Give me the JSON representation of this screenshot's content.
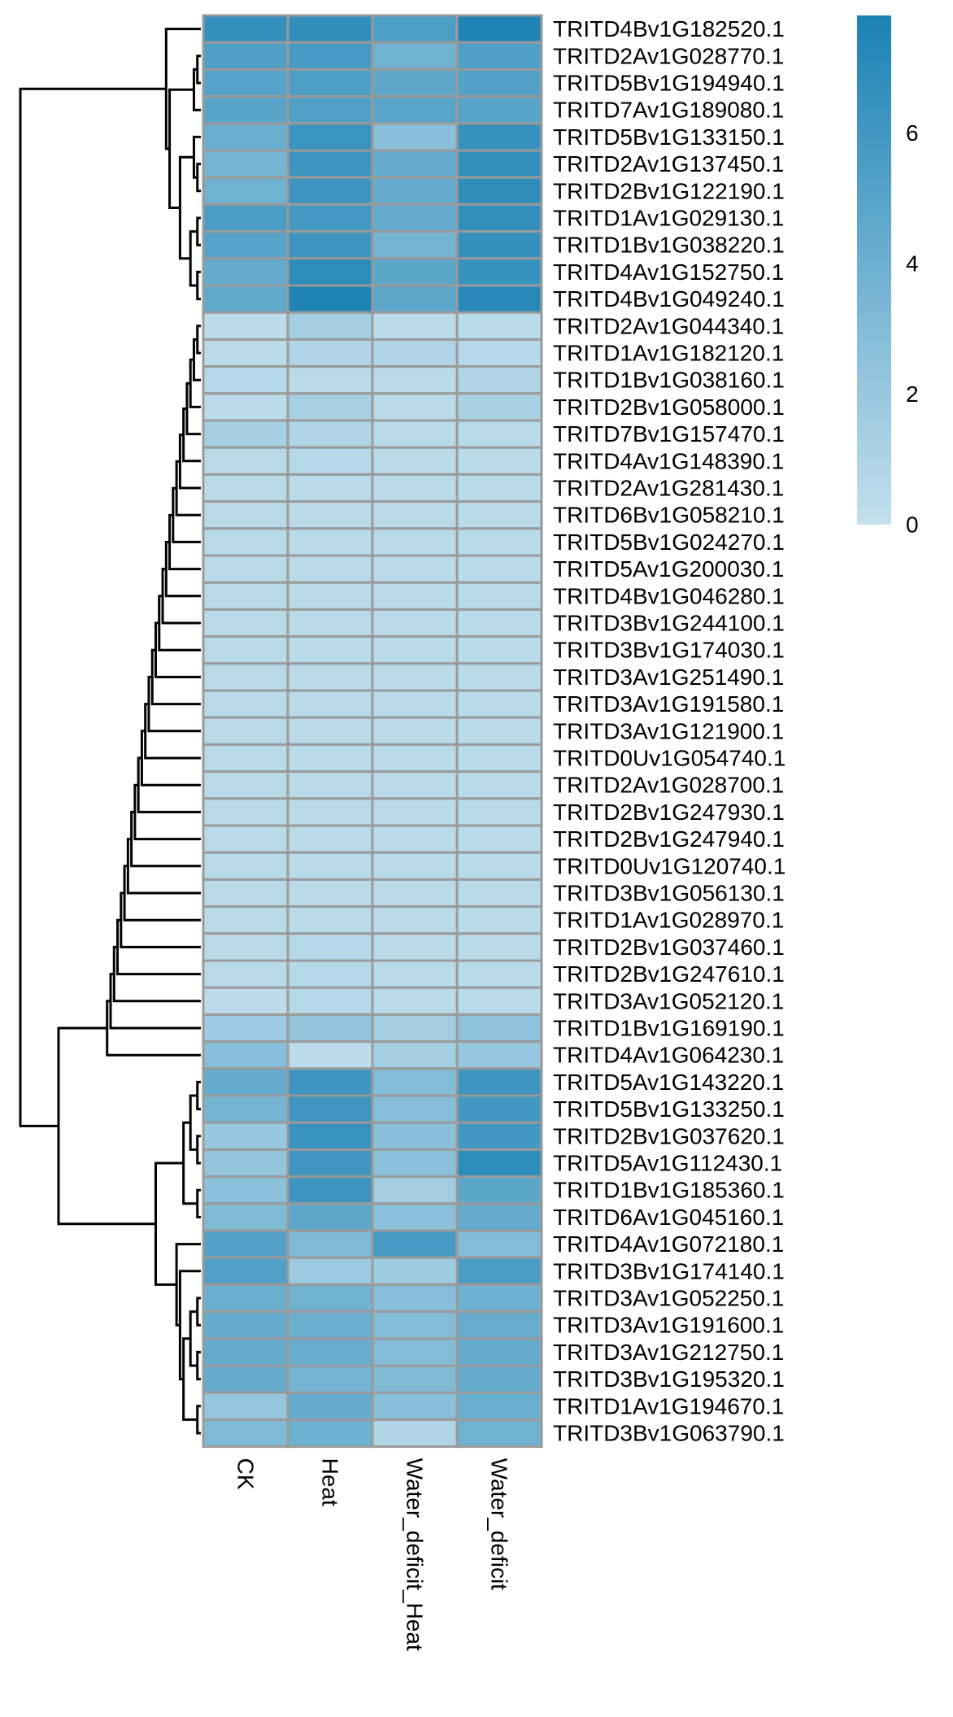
{
  "chart_data": {
    "type": "heatmap",
    "columns": [
      "CK",
      "Heat",
      "Water_deficit_Heat",
      "Water_deficit"
    ],
    "rows": [
      {
        "gene": "TRITD4Bv1G182520.1",
        "values": [
          6.7,
          6.8,
          5.5,
          7.6
        ]
      },
      {
        "gene": "TRITD2Av1G028770.1",
        "values": [
          5.4,
          5.8,
          3.8,
          5.4
        ]
      },
      {
        "gene": "TRITD5Bv1G194940.1",
        "values": [
          5.1,
          5.5,
          4.7,
          5.2
        ]
      },
      {
        "gene": "TRITD7Av1G189080.1",
        "values": [
          5.0,
          5.3,
          4.9,
          5.0
        ]
      },
      {
        "gene": "TRITD5Bv1G133150.1",
        "values": [
          4.1,
          6.3,
          2.7,
          6.5
        ]
      },
      {
        "gene": "TRITD2Av1G137450.1",
        "values": [
          3.6,
          6.2,
          4.3,
          6.7
        ]
      },
      {
        "gene": "TRITD2Bv1G122190.1",
        "values": [
          3.8,
          6.2,
          4.4,
          6.8
        ]
      },
      {
        "gene": "TRITD1Av1G029130.1",
        "values": [
          5.6,
          5.9,
          4.4,
          6.7
        ]
      },
      {
        "gene": "TRITD1Bv1G038220.1",
        "values": [
          5.1,
          6.2,
          3.6,
          6.6
        ]
      },
      {
        "gene": "TRITD4Av1G152750.1",
        "values": [
          4.4,
          7.0,
          4.8,
          6.5
        ]
      },
      {
        "gene": "TRITD4Bv1G049240.1",
        "values": [
          4.6,
          7.6,
          4.7,
          7.2
        ]
      },
      {
        "gene": "TRITD2Av1G044340.1",
        "values": [
          0.3,
          1.5,
          0.3,
          0.5
        ]
      },
      {
        "gene": "TRITD1Av1G182120.1",
        "values": [
          0.4,
          0.8,
          0.9,
          0.6
        ]
      },
      {
        "gene": "TRITD1Bv1G038160.1",
        "values": [
          0.6,
          0.5,
          0.5,
          0.9
        ]
      },
      {
        "gene": "TRITD2Bv1G058000.1",
        "values": [
          0.4,
          1.3,
          0.5,
          1.2
        ]
      },
      {
        "gene": "TRITD7Bv1G157470.1",
        "values": [
          1.4,
          0.9,
          0.5,
          0.5
        ]
      },
      {
        "gene": "TRITD4Av1G148390.1",
        "values": [
          0.5,
          0.6,
          0.5,
          0.5
        ]
      },
      {
        "gene": "TRITD2Av1G281430.1",
        "values": [
          0.5,
          0.5,
          0.5,
          0.5
        ]
      },
      {
        "gene": "TRITD6Bv1G058210.1",
        "values": [
          0.5,
          0.5,
          0.5,
          0.5
        ]
      },
      {
        "gene": "TRITD5Bv1G024270.1",
        "values": [
          0.5,
          0.5,
          0.5,
          0.5
        ]
      },
      {
        "gene": "TRITD5Av1G200030.1",
        "values": [
          0.5,
          0.5,
          0.5,
          0.5
        ]
      },
      {
        "gene": "TRITD4Bv1G046280.1",
        "values": [
          0.5,
          0.5,
          0.5,
          0.5
        ]
      },
      {
        "gene": "TRITD3Bv1G244100.1",
        "values": [
          0.5,
          0.5,
          0.5,
          0.5
        ]
      },
      {
        "gene": "TRITD3Bv1G174030.1",
        "values": [
          0.5,
          0.5,
          0.5,
          0.5
        ]
      },
      {
        "gene": "TRITD3Av1G251490.1",
        "values": [
          0.5,
          0.5,
          0.5,
          0.5
        ]
      },
      {
        "gene": "TRITD3Av1G191580.1",
        "values": [
          0.5,
          0.5,
          0.5,
          0.5
        ]
      },
      {
        "gene": "TRITD3Av1G121900.1",
        "values": [
          0.5,
          0.5,
          0.5,
          0.5
        ]
      },
      {
        "gene": "TRITD0Uv1G054740.1",
        "values": [
          0.5,
          0.5,
          0.5,
          0.5
        ]
      },
      {
        "gene": "TRITD2Av1G028700.1",
        "values": [
          0.5,
          0.5,
          0.5,
          0.5
        ]
      },
      {
        "gene": "TRITD2Bv1G247930.1",
        "values": [
          0.5,
          0.5,
          0.5,
          0.5
        ]
      },
      {
        "gene": "TRITD2Bv1G247940.1",
        "values": [
          0.5,
          0.5,
          0.5,
          0.5
        ]
      },
      {
        "gene": "TRITD0Uv1G120740.1",
        "values": [
          0.5,
          0.5,
          0.5,
          0.5
        ]
      },
      {
        "gene": "TRITD3Bv1G056130.1",
        "values": [
          0.5,
          0.5,
          0.5,
          0.5
        ]
      },
      {
        "gene": "TRITD1Av1G028970.1",
        "values": [
          0.5,
          0.5,
          0.5,
          0.5
        ]
      },
      {
        "gene": "TRITD2Bv1G037460.1",
        "values": [
          0.5,
          0.6,
          0.5,
          0.5
        ]
      },
      {
        "gene": "TRITD2Bv1G247610.1",
        "values": [
          0.5,
          0.6,
          0.5,
          0.5
        ]
      },
      {
        "gene": "TRITD3Av1G052120.1",
        "values": [
          0.3,
          0.6,
          0.5,
          0.5
        ]
      },
      {
        "gene": "TRITD1Bv1G169190.1",
        "values": [
          1.8,
          2.2,
          1.5,
          2.4
        ]
      },
      {
        "gene": "TRITD4Av1G064230.1",
        "values": [
          2.8,
          0.3,
          1.4,
          2.1
        ]
      },
      {
        "gene": "TRITD5Av1G143220.1",
        "values": [
          4.3,
          6.2,
          3.0,
          6.2
        ]
      },
      {
        "gene": "TRITD5Bv1G133250.1",
        "values": [
          3.6,
          6.1,
          2.8,
          6.0
        ]
      },
      {
        "gene": "TRITD2Bv1G037620.1",
        "values": [
          2.0,
          6.4,
          2.7,
          6.0
        ]
      },
      {
        "gene": "TRITD5Av1G112430.1",
        "values": [
          2.2,
          6.1,
          2.6,
          7.0
        ]
      },
      {
        "gene": "TRITD1Bv1G185360.1",
        "values": [
          2.6,
          6.2,
          1.5,
          4.8
        ]
      },
      {
        "gene": "TRITD6Av1G045160.1",
        "values": [
          3.1,
          4.7,
          2.6,
          4.4
        ]
      },
      {
        "gene": "TRITD4Av1G072180.1",
        "values": [
          5.2,
          3.2,
          5.8,
          3.0
        ]
      },
      {
        "gene": "TRITD3Bv1G174140.1",
        "values": [
          5.3,
          1.8,
          1.7,
          5.6
        ]
      },
      {
        "gene": "TRITD3Av1G052250.1",
        "values": [
          4.1,
          3.8,
          2.8,
          3.9
        ]
      },
      {
        "gene": "TRITD3Av1G191600.1",
        "values": [
          4.4,
          4.1,
          3.0,
          4.2
        ]
      },
      {
        "gene": "TRITD3Av1G212750.1",
        "values": [
          4.4,
          4.2,
          3.0,
          4.3
        ]
      },
      {
        "gene": "TRITD3Bv1G195320.1",
        "values": [
          4.3,
          3.6,
          3.1,
          4.4
        ]
      },
      {
        "gene": "TRITD1Av1G194670.1",
        "values": [
          2.1,
          4.3,
          2.7,
          4.1
        ]
      },
      {
        "gene": "TRITD3Bv1G063790.1",
        "values": [
          3.2,
          3.9,
          0.9,
          3.8
        ]
      }
    ],
    "color_scale": {
      "domain": [
        0,
        7.8
      ],
      "low_color": "#c3e0ed",
      "high_color": "#1b82b4"
    },
    "legend": {
      "ticks": [
        0,
        2,
        4,
        6
      ],
      "tick_labels": [
        "0",
        "2",
        "4",
        "6"
      ],
      "placement": "top-right"
    },
    "row_dendrogram": true,
    "cell_borders": "#9a9a9a"
  }
}
